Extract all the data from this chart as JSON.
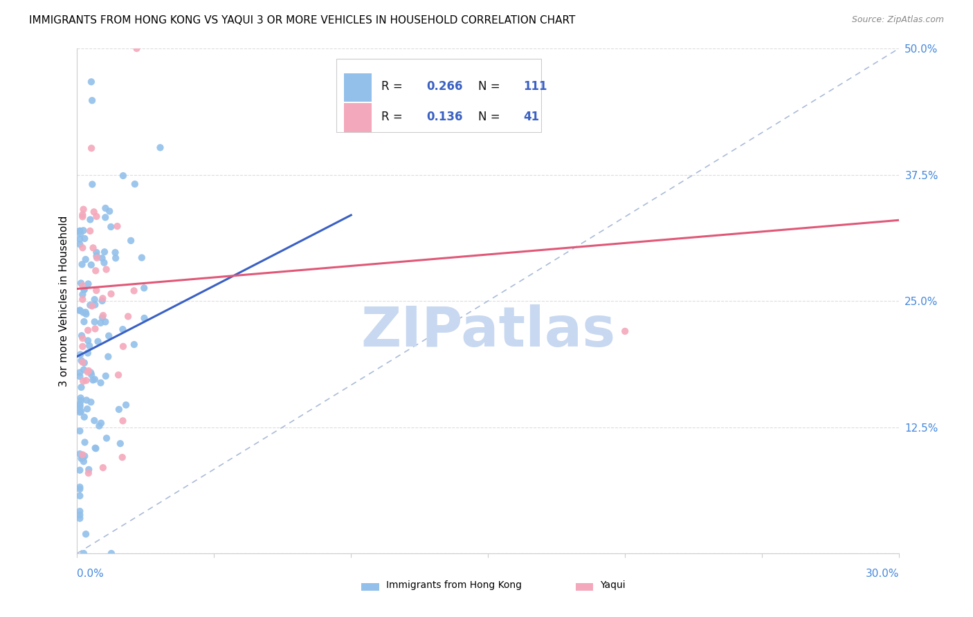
{
  "title": "IMMIGRANTS FROM HONG KONG VS YAQUI 3 OR MORE VEHICLES IN HOUSEHOLD CORRELATION CHART",
  "source": "Source: ZipAtlas.com",
  "ylabel": "3 or more Vehicles in Household",
  "xmin": 0.0,
  "xmax": 0.3,
  "ymin": 0.0,
  "ymax": 0.5,
  "series1_label": "Immigrants from Hong Kong",
  "series1_color": "#92C0EA",
  "series1_R": 0.266,
  "series1_N": 111,
  "series1_trend_color": "#3A60C4",
  "series2_label": "Yaqui",
  "series2_color": "#F4A8BB",
  "series2_R": 0.136,
  "series2_N": 41,
  "series2_trend_color": "#E05878",
  "legend_text_color": "#111111",
  "legend_value_color": "#3A60C4",
  "watermark": "ZIPatlas",
  "watermark_color": "#C8D8F0",
  "grid_color": "#DDDDDD",
  "title_fontsize": 11,
  "axis_tick_color": "#4488DD",
  "diag_line_color": "#AABBD8",
  "blue_trend_x0": 0.0,
  "blue_trend_x1": 0.1,
  "blue_trend_y0": 0.195,
  "blue_trend_y1": 0.335,
  "pink_trend_x0": 0.0,
  "pink_trend_x1": 0.3,
  "pink_trend_y0": 0.262,
  "pink_trend_y1": 0.33
}
